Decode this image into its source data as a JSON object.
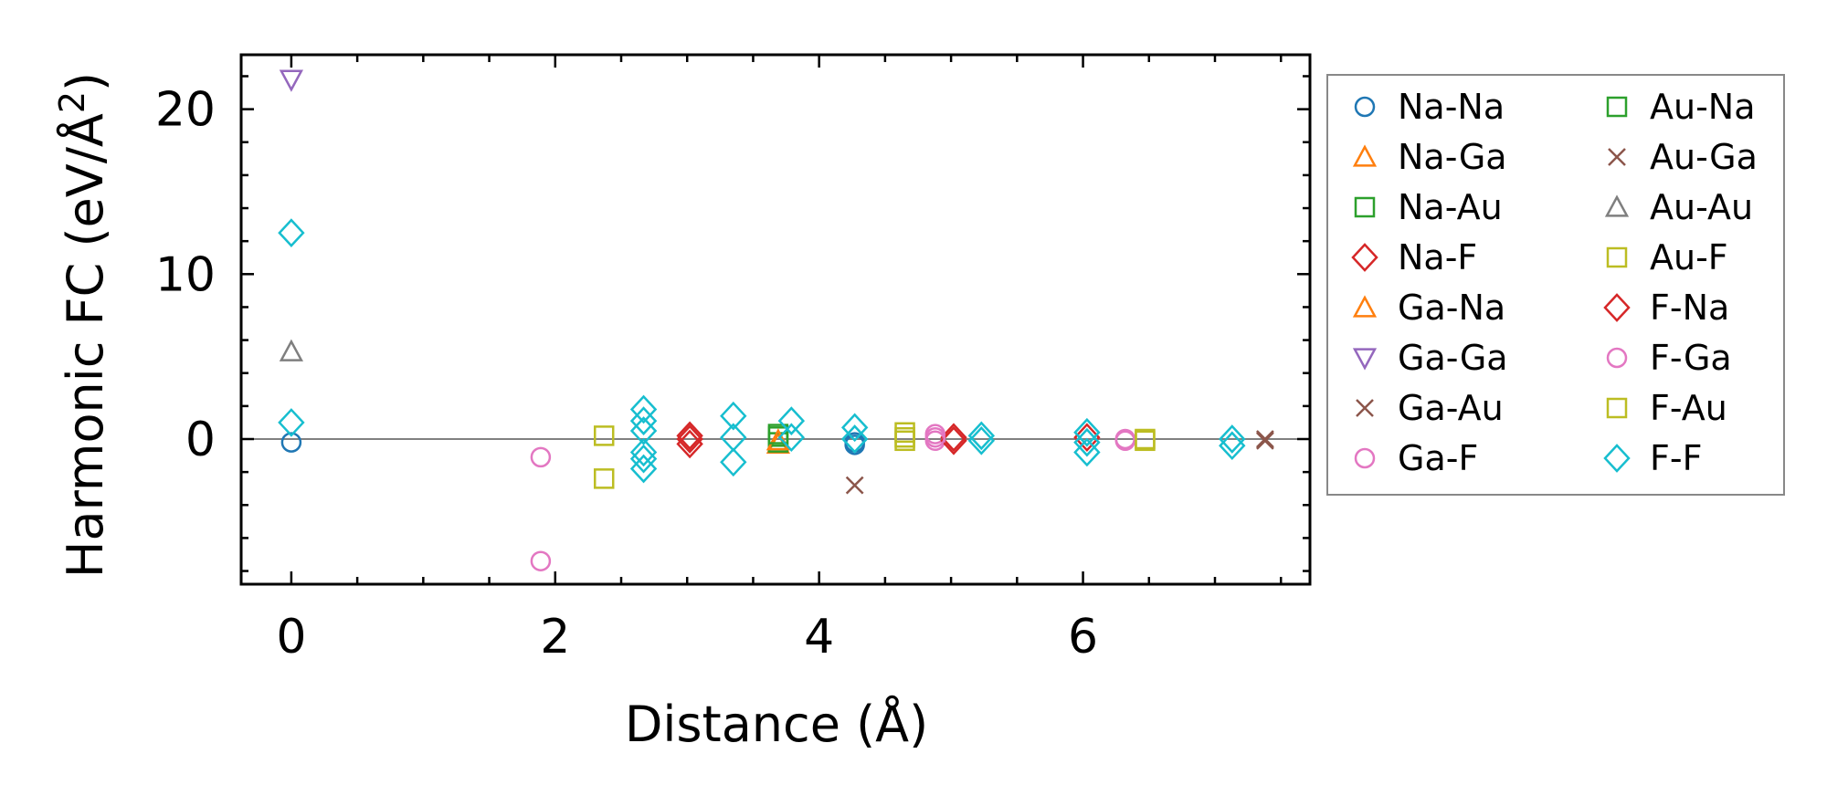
{
  "chart_data": {
    "type": "scatter",
    "title": "",
    "xlabel": "Distance (Å)",
    "ylabel_main": "Harmonic FC (eV/Å",
    "ylabel_sup": "2",
    "ylabel_close": ")",
    "xlim": [
      -0.38,
      7.72
    ],
    "ylim": [
      -8.8,
      23.3
    ],
    "xticks": [
      0,
      2,
      4,
      6
    ],
    "xtick_labels": [
      "0",
      "2",
      "4",
      "6"
    ],
    "yticks": [
      0,
      10,
      20
    ],
    "ytick_labels": [
      "0",
      "10",
      "20"
    ],
    "zero_line": 0,
    "legend_position": "right, outside plot",
    "series": [
      {
        "name": "Na-Na",
        "marker": "circle",
        "color": "#1f77b4",
        "points": [
          [
            0,
            -0.2
          ],
          [
            4.27,
            -0.2
          ],
          [
            4.27,
            -0.35
          ]
        ]
      },
      {
        "name": "Na-Ga",
        "marker": "triangle-up",
        "color": "#ff7f0e",
        "points": [
          [
            3.69,
            -0.3
          ]
        ]
      },
      {
        "name": "Na-Au",
        "marker": "square",
        "color": "#2ca02c",
        "points": [
          [
            3.69,
            0.15
          ],
          [
            3.69,
            -0.2
          ]
        ]
      },
      {
        "name": "Na-F",
        "marker": "diamond",
        "color": "#d62728",
        "points": [
          [
            3.02,
            0.2
          ],
          [
            3.02,
            -0.3
          ],
          [
            5.02,
            0.1
          ],
          [
            6.03,
            0.1
          ]
        ]
      },
      {
        "name": "Ga-Na",
        "marker": "triangle-up",
        "color": "#ff7f0e",
        "points": [
          [
            3.69,
            -0.1
          ]
        ]
      },
      {
        "name": "Ga-Ga",
        "marker": "triangle-down",
        "color": "#9467bd",
        "points": [
          [
            0,
            21.8
          ]
        ]
      },
      {
        "name": "Ga-Au",
        "marker": "x",
        "color": "#8c564b",
        "points": [
          [
            4.27,
            -2.8
          ],
          [
            7.38,
            -0.1
          ]
        ]
      },
      {
        "name": "Ga-F",
        "marker": "circle",
        "color": "#e377c2",
        "points": [
          [
            1.89,
            -1.1
          ],
          [
            1.89,
            -7.4
          ],
          [
            4.88,
            0.3
          ],
          [
            4.88,
            -0.1
          ],
          [
            6.32,
            0.0
          ]
        ]
      },
      {
        "name": "Au-Na",
        "marker": "square",
        "color": "#2ca02c",
        "points": [
          [
            3.69,
            0.3
          ]
        ]
      },
      {
        "name": "Au-Ga",
        "marker": "x",
        "color": "#8c564b",
        "points": [
          [
            7.38,
            0.0
          ]
        ]
      },
      {
        "name": "Au-Au",
        "marker": "triangle-up",
        "color": "#7f7f7f",
        "points": [
          [
            0,
            5.3
          ]
        ]
      },
      {
        "name": "Au-F",
        "marker": "square",
        "color": "#bcbd22",
        "points": [
          [
            2.37,
            0.2
          ],
          [
            2.37,
            -2.4
          ],
          [
            4.65,
            0.4
          ],
          [
            4.65,
            -0.1
          ],
          [
            6.47,
            0.0
          ]
        ]
      },
      {
        "name": "F-Na",
        "marker": "diamond",
        "color": "#d62728",
        "points": [
          [
            3.02,
            0.0
          ],
          [
            5.02,
            -0.1
          ]
        ]
      },
      {
        "name": "F-Ga",
        "marker": "circle",
        "color": "#e377c2",
        "points": [
          [
            4.88,
            0.1
          ],
          [
            6.32,
            -0.1
          ]
        ]
      },
      {
        "name": "F-Au",
        "marker": "square",
        "color": "#bcbd22",
        "points": [
          [
            6.47,
            -0.1
          ],
          [
            4.65,
            0.1
          ]
        ]
      },
      {
        "name": "F-F",
        "marker": "diamond",
        "color": "#17becf",
        "points": [
          [
            0,
            12.5
          ],
          [
            0,
            1.0
          ],
          [
            2.67,
            1.8
          ],
          [
            2.67,
            1.1
          ],
          [
            2.67,
            0.5
          ],
          [
            2.67,
            -0.8
          ],
          [
            2.67,
            -1.2
          ],
          [
            2.67,
            -1.8
          ],
          [
            3.35,
            1.4
          ],
          [
            3.35,
            0.1
          ],
          [
            3.35,
            -1.4
          ],
          [
            3.79,
            1.1
          ],
          [
            3.79,
            0.1
          ],
          [
            4.27,
            0.7
          ],
          [
            4.27,
            0.0
          ],
          [
            5.23,
            0.2
          ],
          [
            5.23,
            -0.1
          ],
          [
            6.03,
            0.4
          ],
          [
            6.03,
            -0.2
          ],
          [
            6.03,
            -0.8
          ],
          [
            7.13,
            0.0
          ],
          [
            7.13,
            -0.4
          ]
        ]
      }
    ]
  }
}
